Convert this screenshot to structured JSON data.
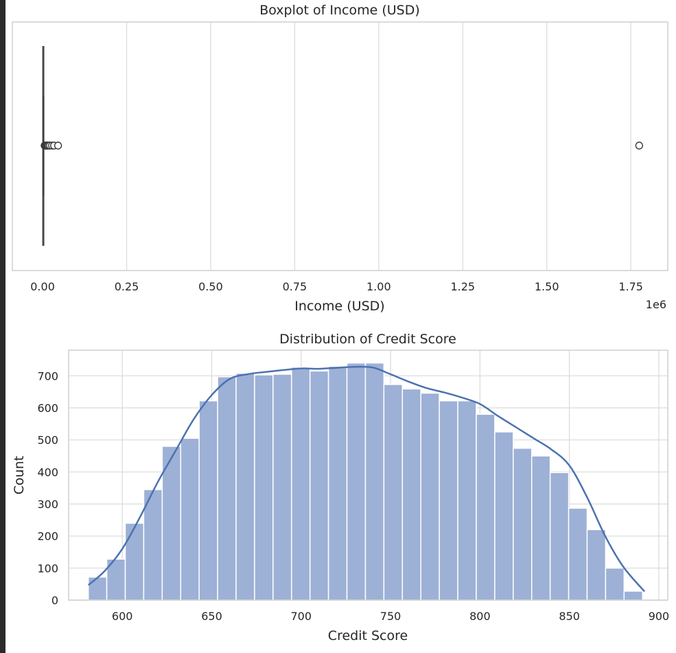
{
  "chart_data": [
    {
      "type": "box",
      "title": "Boxplot of Income (USD)",
      "xlabel": "Income (USD)",
      "scale_label": "1e6",
      "xlim": [
        -0.09,
        1.86
      ],
      "x_ticks": [
        0.0,
        0.25,
        0.5,
        0.75,
        1.0,
        1.25,
        1.5,
        1.75
      ],
      "x_tick_labels": [
        "0.00",
        "0.25",
        "0.50",
        "0.75",
        "1.00",
        "1.25",
        "1.50",
        "1.75"
      ],
      "grid": true,
      "box": {
        "whisker_low": 0.0,
        "q1": 0.001,
        "median": 0.002,
        "q3": 0.003,
        "whisker_high": 0.005
      },
      "outliers": [
        0.006,
        0.008,
        0.01,
        0.012,
        0.014,
        0.016,
        0.018,
        0.022,
        0.028,
        0.034,
        0.046,
        1.775
      ],
      "colors": {
        "box": "#4a4a4a",
        "outlier_edge": "#3a3a3a"
      }
    },
    {
      "type": "histogram",
      "title": "Distribution of Credit Score",
      "xlabel": "Credit Score",
      "ylabel": "Count",
      "xlim": [
        570,
        905
      ],
      "ylim": [
        0,
        780
      ],
      "x_ticks": [
        600,
        650,
        700,
        750,
        800,
        850,
        900
      ],
      "y_ticks": [
        0,
        100,
        200,
        300,
        400,
        500,
        600,
        700
      ],
      "grid": true,
      "bin_start": 581,
      "bin_width": 10.33,
      "counts": [
        72,
        128,
        240,
        345,
        480,
        505,
        622,
        697,
        708,
        703,
        705,
        727,
        715,
        730,
        740,
        740,
        673,
        659,
        646,
        622,
        622,
        580,
        525,
        474,
        450,
        398,
        287,
        220,
        100,
        28
      ],
      "kde": {
        "x": [
          581,
          590,
          600,
          610,
          620,
          630,
          640,
          650,
          660,
          670,
          680,
          690,
          700,
          710,
          720,
          730,
          740,
          750,
          760,
          770,
          780,
          790,
          800,
          810,
          820,
          830,
          840,
          850,
          860,
          870,
          880,
          892
        ],
        "y": [
          47,
          90,
          160,
          260,
          370,
          468,
          565,
          640,
          690,
          705,
          712,
          718,
          723,
          722,
          725,
          728,
          726,
          705,
          682,
          662,
          648,
          632,
          612,
          575,
          540,
          505,
          470,
          420,
          320,
          200,
          105,
          27
        ]
      },
      "colors": {
        "bar": "#9db0d6",
        "bar_edge": "#ffffff",
        "kde": "#4c72b0"
      }
    }
  ]
}
